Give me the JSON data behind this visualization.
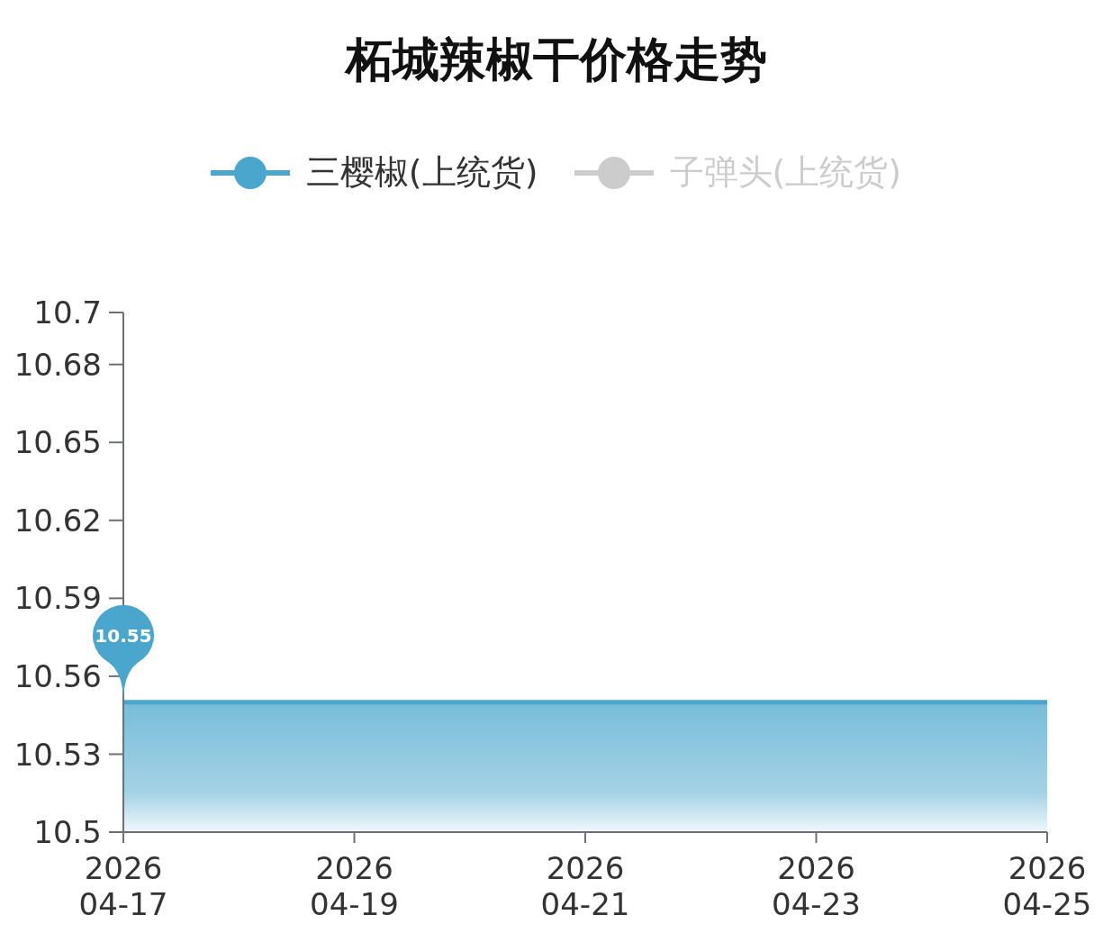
{
  "chart_data": {
    "type": "area",
    "title": "柘城辣椒干价格走势",
    "x": [
      "2026-04-17",
      "2026-04-18",
      "2026-04-19",
      "2026-04-20",
      "2026-04-21",
      "2026-04-22",
      "2026-04-23",
      "2026-04-24",
      "2026-04-25"
    ],
    "series": [
      {
        "name": "三樱椒(上统货)",
        "color": "#4aa6cc",
        "values": [
          10.55,
          10.55,
          10.55,
          10.55,
          10.55,
          10.55,
          10.55,
          10.55,
          10.55
        ],
        "value_labels": [
          "10.55",
          null,
          null,
          null,
          null,
          null,
          null,
          null,
          null
        ]
      },
      {
        "name": "子弹头(上统货)",
        "color": "#cccccc",
        "values": [
          null,
          null,
          null,
          null,
          null,
          null,
          null,
          null,
          null
        ]
      }
    ],
    "xlim": [
      "2026-04-17",
      "2026-04-25"
    ],
    "xticks": [
      {
        "value": "2026-04-17",
        "label": "2026\n04-17"
      },
      {
        "value": "2026-04-19",
        "label": "2026\n04-19"
      },
      {
        "value": "2026-04-21",
        "label": "2026\n04-21"
      },
      {
        "value": "2026-04-23",
        "label": "2026\n04-23"
      },
      {
        "value": "2026-04-25",
        "label": "2026\n04-25"
      }
    ],
    "ylim": [
      10.5,
      10.7
    ],
    "yticks": [
      10.5,
      10.53,
      10.56,
      10.59,
      10.62,
      10.65,
      10.68,
      10.7
    ],
    "legend": "top"
  }
}
